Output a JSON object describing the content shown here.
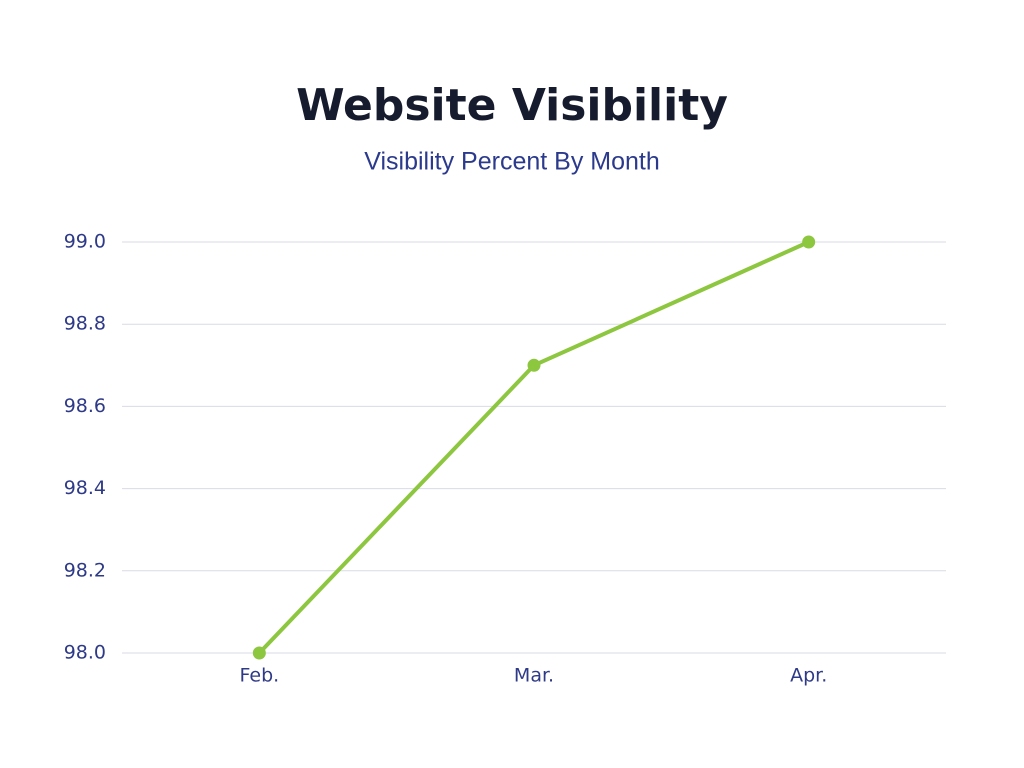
{
  "chart_data": {
    "type": "line",
    "title": "Website Visibility",
    "subtitle": "Visibility Percent By Month",
    "categories": [
      "Feb.",
      "Mar.",
      "Apr."
    ],
    "values": [
      98.0,
      98.7,
      99.0
    ],
    "color": "#8dc63f",
    "ylim": [
      98,
      99
    ],
    "yticks": [
      {
        "value": 98,
        "label": "98.0"
      },
      98.2,
      98.4,
      98.6,
      98.8,
      {
        "value": 99,
        "label": "99.0"
      }
    ],
    "grid": true
  }
}
